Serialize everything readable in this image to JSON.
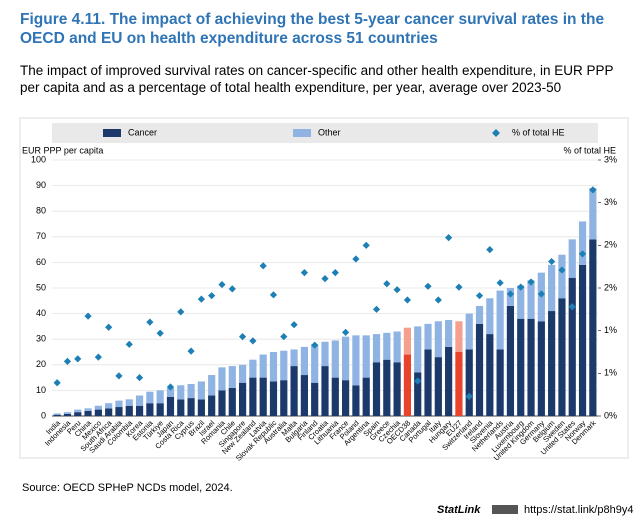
{
  "chart_data": {
    "type": "stacked_bar_dot",
    "title": "Figure 4.11. The impact of achieving the best 5-year cancer survival rates in the OECD and EU on health expenditure across 51 countries",
    "subtitle": "The impact of improved survival rates on cancer-specific and other health expenditure, in EUR PPP per capita and as a percentage of total health expenditure, per year, average over 2023-50",
    "ylabel": "EUR PPP per capita",
    "y2label": "% of total HE",
    "source": "Source: OECD SPHeP NCDs model, 2024.",
    "statlink": "StatLink",
    "link": "https://stat.link/p8h9y4",
    "categories": [
      "India",
      "Indonesia",
      "Peru",
      "China",
      "Mexico",
      "South Africa",
      "Saudi Arabia",
      "Colombia",
      "Korea",
      "Estonia",
      "Türkiye",
      "Japan",
      "Costa Rica",
      "Cyprus",
      "Brazil",
      "Israel",
      "Romania",
      "Chile",
      "Singapore",
      "New Zealand",
      "Latvia",
      "Slovak Republic",
      "Australia",
      "Malta",
      "Bulgaria",
      "Finland",
      "Croatia",
      "Lithuania",
      "France",
      "Poland",
      "Argentina",
      "Spain",
      "Greece",
      "Czechia",
      "OECD38",
      "Canada",
      "Portugal",
      "Italy",
      "Hungary",
      "EU27",
      "Switzerland",
      "Ireland",
      "Slovenia",
      "Netherlands",
      "Austria",
      "Luxembourg",
      "United Kingdom",
      "Germany",
      "Belgium",
      "Sweden",
      "United States",
      "Norway",
      "Denmark"
    ],
    "highlight": [
      "OECD38",
      "EU27"
    ],
    "series": [
      {
        "name": "Cancer",
        "color": "#1b3a6b",
        "highlight_color": "#e8432d",
        "values": [
          0.5,
          0.8,
          1.5,
          2,
          2.5,
          3,
          3.5,
          4,
          4,
          5,
          5,
          7.5,
          6.5,
          7,
          6.5,
          8,
          10,
          11,
          13,
          15,
          15,
          13.5,
          14,
          19.5,
          16,
          13,
          19.5,
          15,
          14,
          12,
          15,
          21,
          22,
          21,
          24,
          17,
          26,
          23,
          27,
          25,
          26,
          36,
          32,
          26,
          43,
          38,
          38,
          37,
          41,
          46,
          54,
          59,
          69
        ]
      },
      {
        "name": "Other",
        "color": "#8fb4e3",
        "highlight_color": "#f5a08f",
        "values": [
          0.5,
          0.7,
          1,
          1,
          1.5,
          2,
          2.5,
          2.5,
          4,
          4.5,
          5,
          3.5,
          5.5,
          5.5,
          7,
          8,
          9,
          8.5,
          7,
          7,
          9,
          11.5,
          11.5,
          6.5,
          11,
          15,
          9.5,
          14.5,
          17,
          19.5,
          16.5,
          11,
          10.5,
          12,
          10.5,
          18,
          10,
          14,
          10.5,
          12,
          14,
          7,
          14,
          23,
          7,
          13,
          15,
          19,
          18,
          17,
          15,
          17,
          20
        ]
      },
      {
        "name": "% of total HE",
        "color": "#1e7fb5",
        "axis": "y2",
        "values": [
          0.39,
          0.64,
          0.67,
          1.17,
          0.69,
          1.04,
          0.47,
          0.84,
          0.45,
          1.1,
          0.97,
          0.34,
          1.22,
          0.76,
          1.37,
          1.41,
          1.54,
          1.49,
          0.93,
          0.88,
          1.76,
          1.42,
          0.93,
          1.07,
          1.68,
          0.83,
          1.61,
          1.68,
          0.98,
          1.84,
          2.0,
          1.25,
          1.55,
          1.48,
          1.36,
          0.41,
          1.52,
          1.36,
          2.09,
          1.51,
          0.23,
          1.41,
          1.95,
          1.56,
          1.43,
          1.51,
          1.57,
          1.43,
          1.81,
          1.71,
          1.28,
          1.9,
          2.65
        ]
      }
    ],
    "ylim": [
      0,
      100
    ],
    "yticks": [
      0,
      10,
      20,
      30,
      40,
      50,
      60,
      70,
      80,
      90,
      100
    ],
    "y2lim": [
      0,
      3
    ],
    "y2ticks": [
      {
        "value": 0,
        "label": "0%"
      },
      {
        "value": 0.5,
        "label": "1%"
      },
      {
        "value": 1,
        "label": "1%"
      },
      {
        "value": 1.5,
        "label": "2%"
      },
      {
        "value": 2,
        "label": "2%"
      },
      {
        "value": 2.5,
        "label": "3%"
      },
      {
        "value": 3,
        "label": "3%"
      }
    ],
    "grid": true
  }
}
